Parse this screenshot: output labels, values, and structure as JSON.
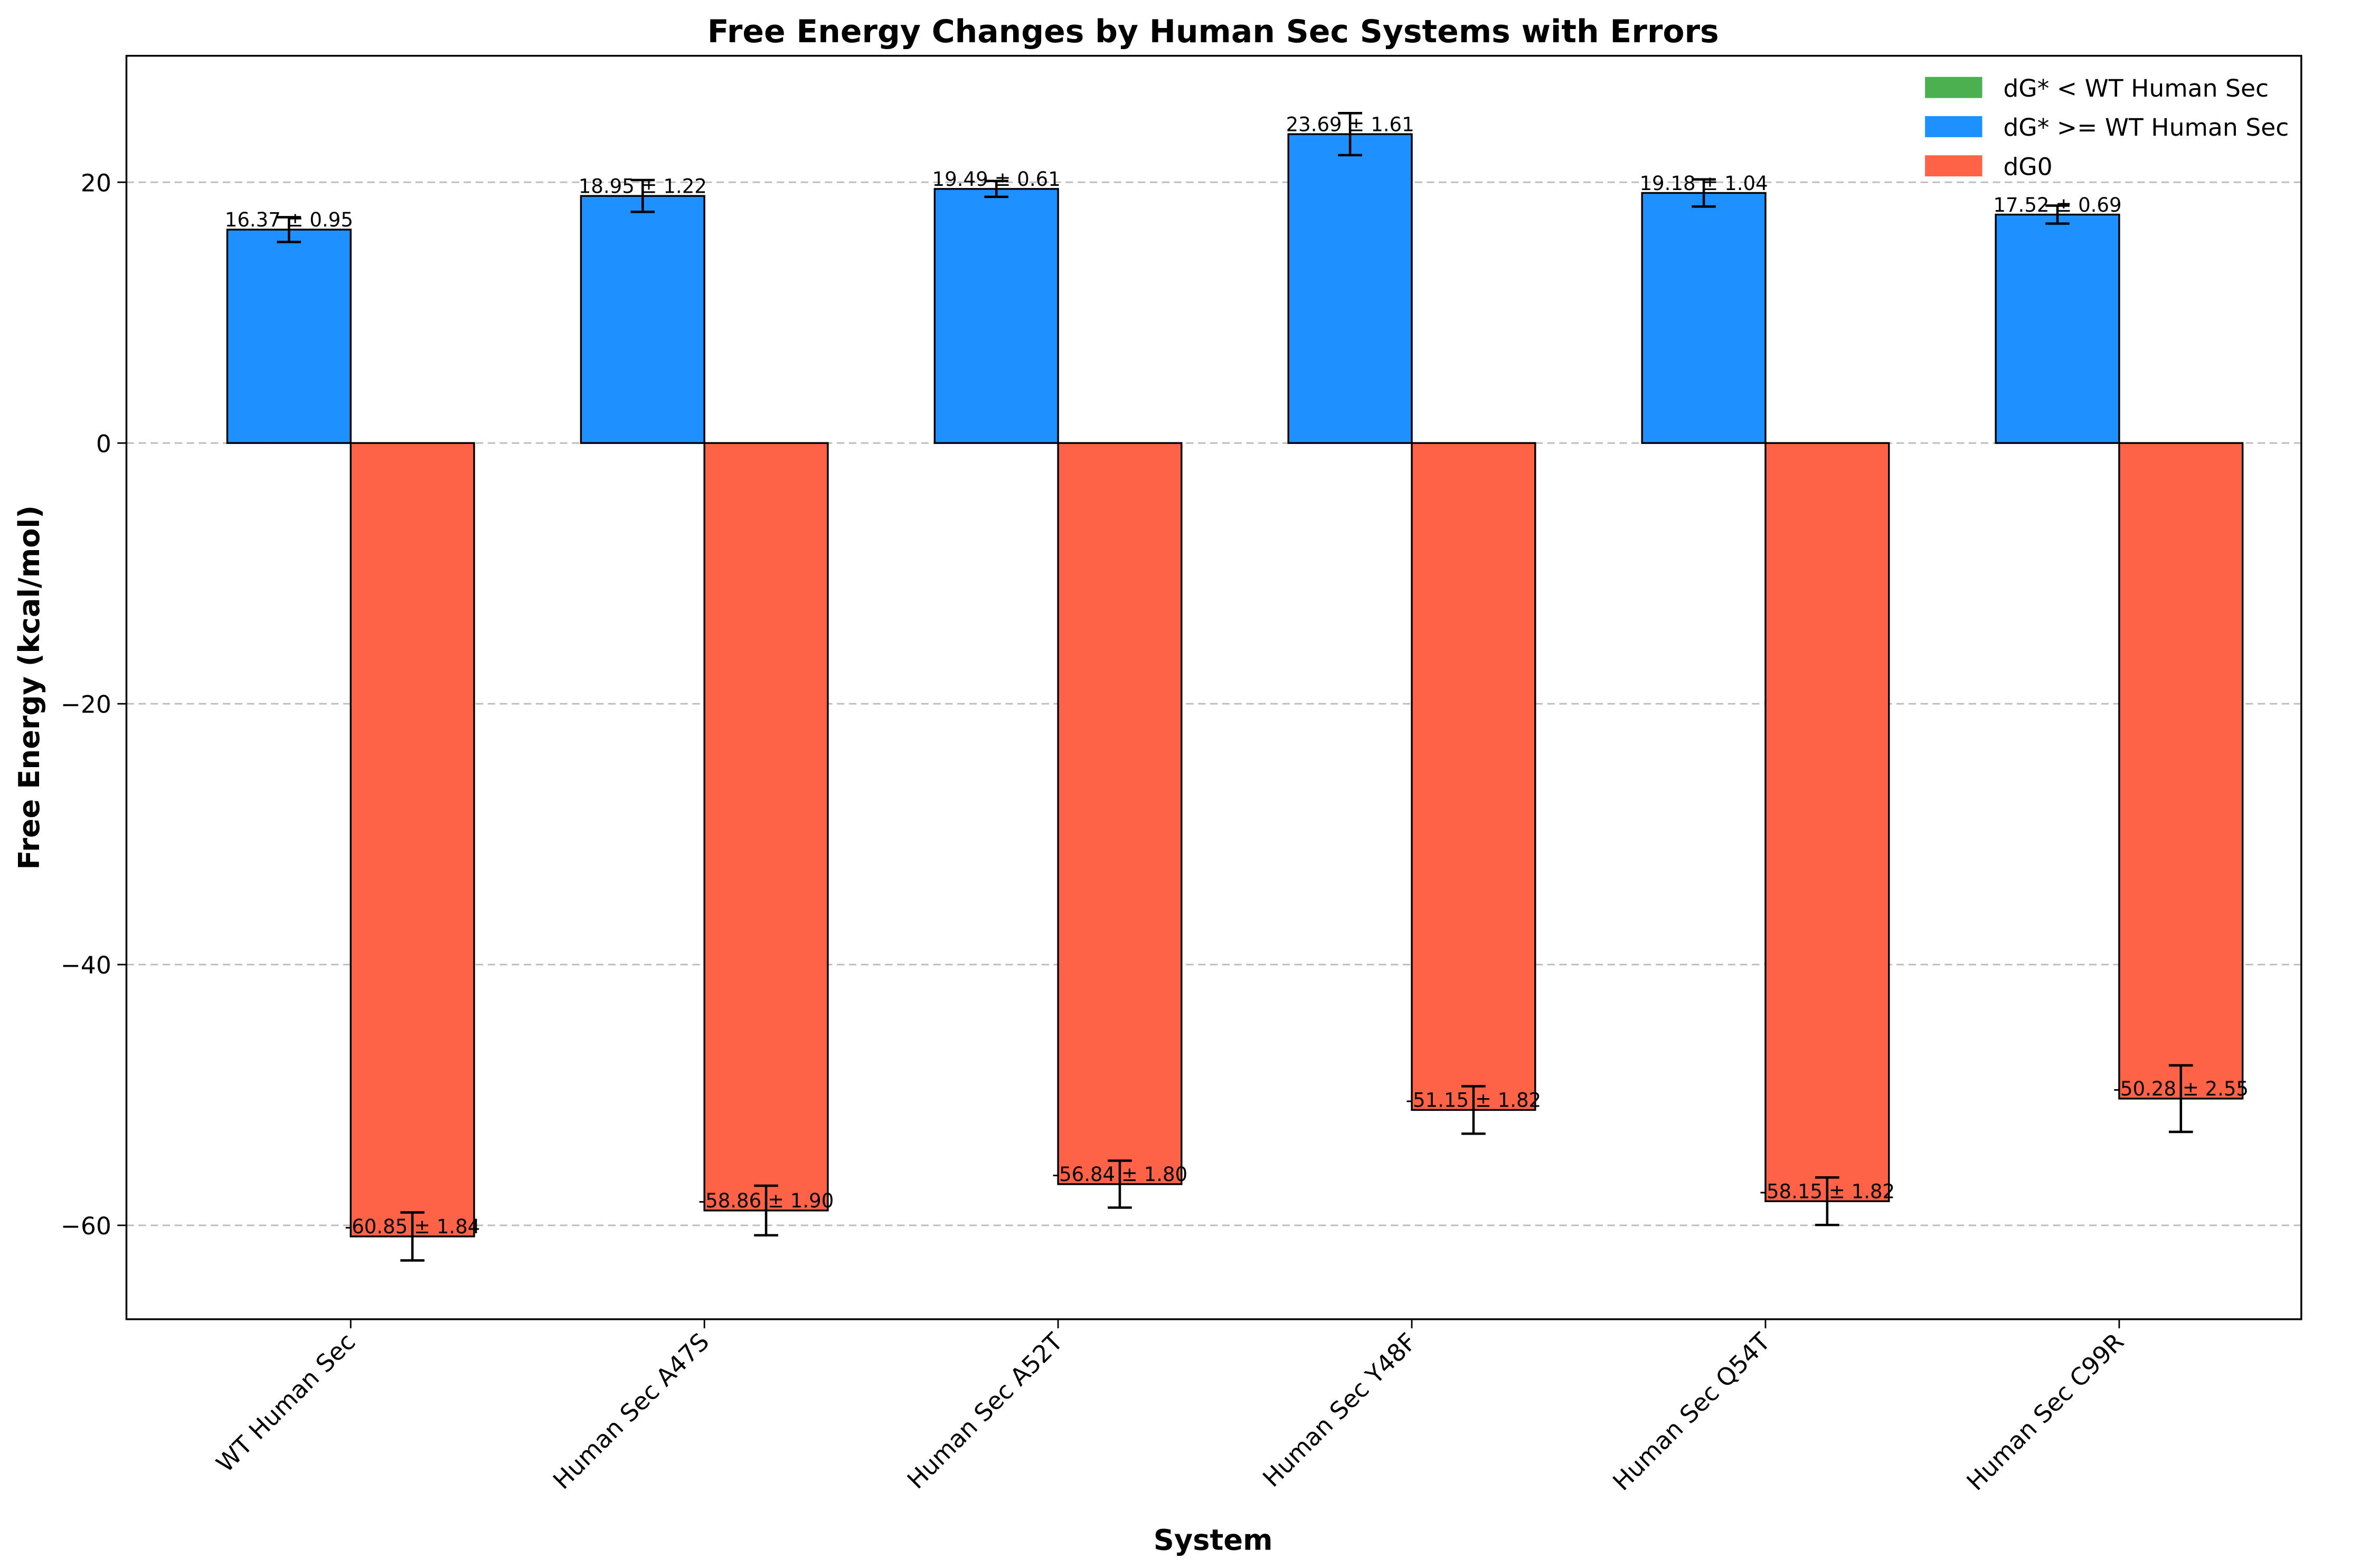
{
  "chart_data": {
    "type": "bar",
    "title": "Free Energy Changes by Human Sec Systems with Errors",
    "xlabel": "System",
    "ylabel": "Free Energy (kcal/mol)",
    "categories": [
      "WT Human Sec",
      "Human Sec A47S",
      "Human Sec A52T",
      "Human Sec Y48F",
      "Human Sec Q54T",
      "Human Sec C99R"
    ],
    "series": [
      {
        "name": "dG* < WT Human Sec",
        "color": "#4caf50",
        "values": [
          null,
          null,
          null,
          null,
          null,
          null
        ]
      },
      {
        "name": "dG* >= WT Human Sec",
        "color": "#1e90ff",
        "values": [
          16.37,
          18.95,
          19.49,
          23.69,
          19.18,
          17.52
        ],
        "errors": [
          0.95,
          1.22,
          0.61,
          1.61,
          1.04,
          0.69
        ],
        "value_labels": [
          "16.37 ± 0.95",
          "18.95 ± 1.22",
          "19.49 ± 0.61",
          "23.69 ± 1.61",
          "19.18 ± 1.04",
          "17.52 ± 0.69"
        ]
      },
      {
        "name": "dG0",
        "color": "#ff6347",
        "values": [
          -60.85,
          -58.86,
          -56.84,
          -51.15,
          -58.15,
          -50.28
        ],
        "errors": [
          1.84,
          1.9,
          1.8,
          1.82,
          1.82,
          2.55
        ],
        "value_labels": [
          "-60.85 ± 1.84",
          "-58.86 ± 1.90",
          "-56.84 ± 1.80",
          "-51.15 ± 1.82",
          "-58.15 ± 1.82",
          "-50.28 ± 2.55"
        ]
      }
    ],
    "ylim": [
      -67.2,
      29.7
    ],
    "yticks": [
      {
        "value": -60,
        "label": "−60"
      },
      {
        "value": -40,
        "label": "−40"
      },
      {
        "value": -20,
        "label": "−20"
      },
      0,
      20
    ],
    "grid": true,
    "legend": "upper right"
  }
}
